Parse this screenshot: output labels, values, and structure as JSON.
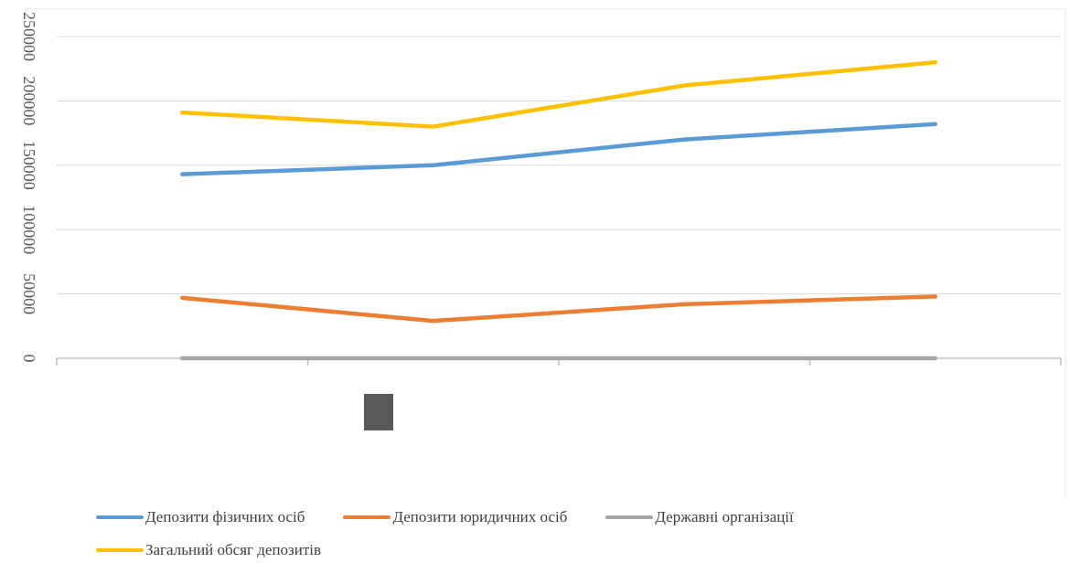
{
  "chart_data": {
    "type": "line",
    "categories": [
      "",
      "",
      "",
      ""
    ],
    "y_ticks": [
      "0",
      "50000",
      "100000",
      "150000",
      "200000",
      "250000"
    ],
    "ylim": [
      0,
      250000
    ],
    "grid": true,
    "legend_position": "bottom",
    "series": [
      {
        "name": "Депозити фізичних осіб",
        "color": "#5b9bd5",
        "values": [
          143000,
          150000,
          170000,
          182000
        ]
      },
      {
        "name": "Депозити юридичних осіб",
        "color": "#ed7d31",
        "values": [
          47000,
          29000,
          42000,
          48000
        ]
      },
      {
        "name": "Державні організації",
        "color": "#a5a5a5",
        "values": [
          0,
          0,
          0,
          0
        ]
      },
      {
        "name": "Загальний обсяг депозитів",
        "color": "#ffc000",
        "values": [
          191000,
          180000,
          212000,
          230000
        ]
      }
    ]
  }
}
